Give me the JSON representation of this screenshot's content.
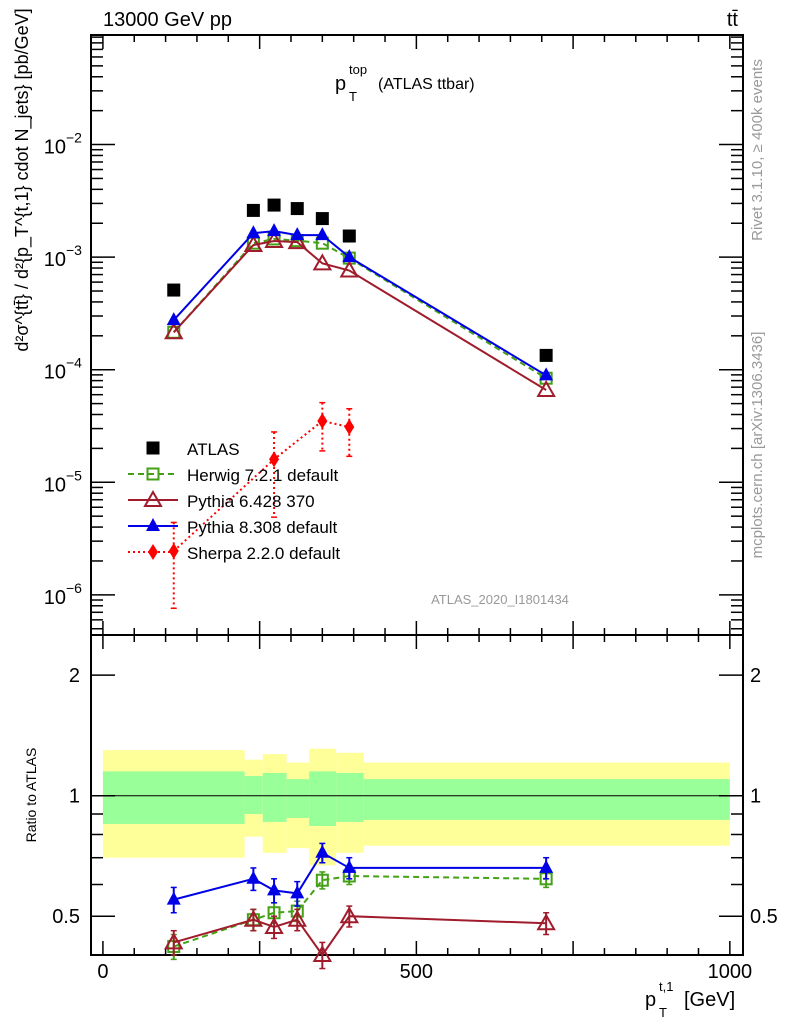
{
  "header": {
    "energy": "13000 GeV pp",
    "process": "tt̄"
  },
  "side_labels": {
    "rivet": "Rivet 3.1.10, ≥ 400k events",
    "mcplots": "mcplots.cern.ch [arXiv:1306.3436]"
  },
  "chart_data": [
    {
      "type": "scatter",
      "panel": "main",
      "title": "p_T^top (ATLAS ttbar)",
      "title_main": "p",
      "title_sub": "T",
      "title_sup": "top",
      "title_rest": "(ATLAS ttbar)",
      "ylabel": "d²σ^{tt̄} / d²{p_T^{t,1} cdot N_jets} [pb/GeV]",
      "yscale": "log",
      "ylim": [
        4.4e-07,
        0.094
      ],
      "xlim": [
        -19,
        1021
      ],
      "yticks": [
        {
          "base": "10",
          "exp": "−2",
          "v": 0.01
        },
        {
          "base": "10",
          "exp": "−3",
          "v": 0.001
        },
        {
          "base": "10",
          "exp": "−4",
          "v": 0.0001
        },
        {
          "base": "10",
          "exp": "−5",
          "v": 1e-05
        },
        {
          "base": "10",
          "exp": "−6",
          "v": 1e-06
        }
      ],
      "watermark": "ATLAS_2020_I1801434",
      "legend_position": "lower-left",
      "series": [
        {
          "name": "ATLAS",
          "color": "#000000",
          "marker": "square-filled",
          "line": "none",
          "x": [
            113,
            240,
            273,
            310,
            350,
            393,
            707
          ],
          "y": [
            0.00051,
            0.0026,
            0.0029,
            0.0027,
            0.0022,
            0.00154,
            0.000134
          ]
        },
        {
          "name": "Herwig 7.2.1 default",
          "color": "#44a016",
          "marker": "square-open",
          "line": "dashed",
          "x": [
            113,
            240,
            273,
            310,
            350,
            393,
            707
          ],
          "y": [
            0.000215,
            0.00133,
            0.00145,
            0.0014,
            0.00133,
            0.00098,
            8.4e-05
          ]
        },
        {
          "name": "Pythia 6.428 370",
          "color": "#a01c2c",
          "marker": "triangle-open",
          "line": "solid",
          "x": [
            113,
            240,
            273,
            310,
            350,
            393,
            707
          ],
          "y": [
            0.000215,
            0.00128,
            0.00139,
            0.00136,
            0.00088,
            0.00076,
            6.6e-05
          ]
        },
        {
          "name": "Pythia 8.308 default",
          "color": "#0000e6",
          "marker": "triangle-filled",
          "line": "solid",
          "x": [
            113,
            240,
            273,
            310,
            350,
            393,
            707
          ],
          "y": [
            0.000276,
            0.00163,
            0.0017,
            0.00157,
            0.00157,
            0.001,
            8.9e-05
          ]
        },
        {
          "name": "Sherpa 2.2.0 default",
          "color": "#ff0000",
          "marker": "diamond-filled",
          "line": "dotted",
          "x": [
            113,
            273,
            350,
            393
          ],
          "y": [
            2.45e-06,
            1.6e-05,
            3.5e-05,
            3.1e-05
          ],
          "y_up": [
            4.4e-06,
            2.8e-05,
            5.1e-05,
            4.5e-05
          ],
          "y_down": [
            7.6e-07,
            4.9e-06,
            1.9e-05,
            1.7e-05
          ]
        }
      ]
    },
    {
      "type": "scatter",
      "panel": "ratio",
      "ylabel": "Ratio to ATLAS",
      "xlabel": "p_T^{t,1} [GeV]",
      "xlabel_main": "p",
      "xlabel_sub": "T",
      "xlabel_sup": "t,1",
      "xlabel_rest": "[GeV]",
      "yscale": "log",
      "ylim": [
        0.4,
        2.52
      ],
      "xlim": [
        -19,
        1021
      ],
      "xticks": [
        {
          "label": "0",
          "v": 0
        },
        {
          "label": "500",
          "v": 500
        },
        {
          "label": "1000",
          "v": 1000
        }
      ],
      "yticks": [
        {
          "label": "0.5",
          "v": 0.5
        },
        {
          "label": "1",
          "v": 1
        },
        {
          "label": "2",
          "v": 2
        }
      ],
      "bands": {
        "edges": [
          0,
          226,
          255,
          293,
          329,
          372,
          416,
          1000
        ],
        "inner_color": "#99ff99",
        "outer_color": "#ffff99",
        "outer_up": [
          1.3,
          1.23,
          1.27,
          1.21,
          1.31,
          1.28,
          1.21
        ],
        "inner_up": [
          1.15,
          1.12,
          1.14,
          1.1,
          1.15,
          1.14,
          1.1
        ],
        "inner_down": [
          0.85,
          0.9,
          0.86,
          0.88,
          0.84,
          0.86,
          0.87
        ],
        "outer_down": [
          0.7,
          0.79,
          0.72,
          0.74,
          0.67,
          0.72,
          0.75
        ]
      },
      "series": [
        {
          "name": "Herwig 7.2.1 default",
          "color": "#44a016",
          "marker": "square-open",
          "line": "dashed",
          "x": [
            113,
            240,
            273,
            310,
            350,
            393,
            707
          ],
          "y": [
            0.42,
            0.49,
            0.51,
            0.515,
            0.615,
            0.63,
            0.62
          ],
          "err": 0.03
        },
        {
          "name": "Pythia 6.428 370",
          "color": "#a01c2c",
          "marker": "triangle-open",
          "line": "solid",
          "x": [
            113,
            240,
            273,
            310,
            350,
            393,
            707
          ],
          "y": [
            0.43,
            0.49,
            0.47,
            0.49,
            0.4,
            0.5,
            0.48
          ],
          "err": 0.03
        },
        {
          "name": "Pythia 8.308 default",
          "color": "#0000e6",
          "marker": "triangle-filled",
          "line": "solid",
          "x": [
            113,
            240,
            273,
            310,
            350,
            393,
            707
          ],
          "y": [
            0.55,
            0.62,
            0.58,
            0.57,
            0.72,
            0.66,
            0.66
          ],
          "err": 0.04
        }
      ]
    }
  ]
}
